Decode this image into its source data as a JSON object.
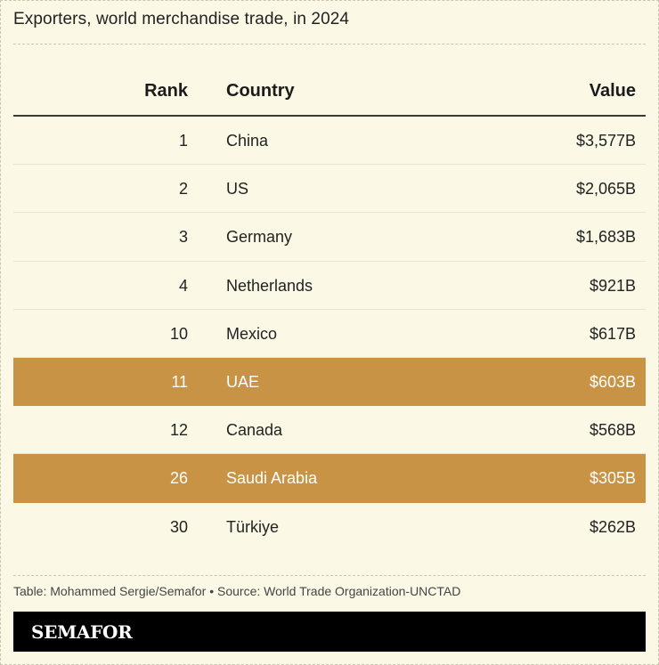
{
  "title": "Exporters, world merchandise trade, in 2024",
  "chart_data": {
    "type": "table",
    "columns": [
      "Rank",
      "Country",
      "Value"
    ],
    "rows": [
      {
        "rank": "1",
        "country": "China",
        "value": "$3,577B",
        "highlight": false
      },
      {
        "rank": "2",
        "country": "US",
        "value": "$2,065B",
        "highlight": false
      },
      {
        "rank": "3",
        "country": "Germany",
        "value": "$1,683B",
        "highlight": false
      },
      {
        "rank": "4",
        "country": "Netherlands",
        "value": "$921B",
        "highlight": false
      },
      {
        "rank": "10",
        "country": "Mexico",
        "value": "$617B",
        "highlight": false
      },
      {
        "rank": "11",
        "country": "UAE",
        "value": "$603B",
        "highlight": true
      },
      {
        "rank": "12",
        "country": "Canada",
        "value": "$568B",
        "highlight": false
      },
      {
        "rank": "26",
        "country": "Saudi Arabia",
        "value": "$305B",
        "highlight": true
      },
      {
        "rank": "30",
        "country": "Türkiye",
        "value": "$262B",
        "highlight": false
      }
    ],
    "highlight_color": "#c99346"
  },
  "source": "Table: Mohammed Sergie/Semafor • Source: World Trade Organization-UNCTAD",
  "logo": "SEMAFOR",
  "colors": {
    "background": "#fbf9e5",
    "highlight": "#c99346",
    "logo_bar": "#000000"
  }
}
